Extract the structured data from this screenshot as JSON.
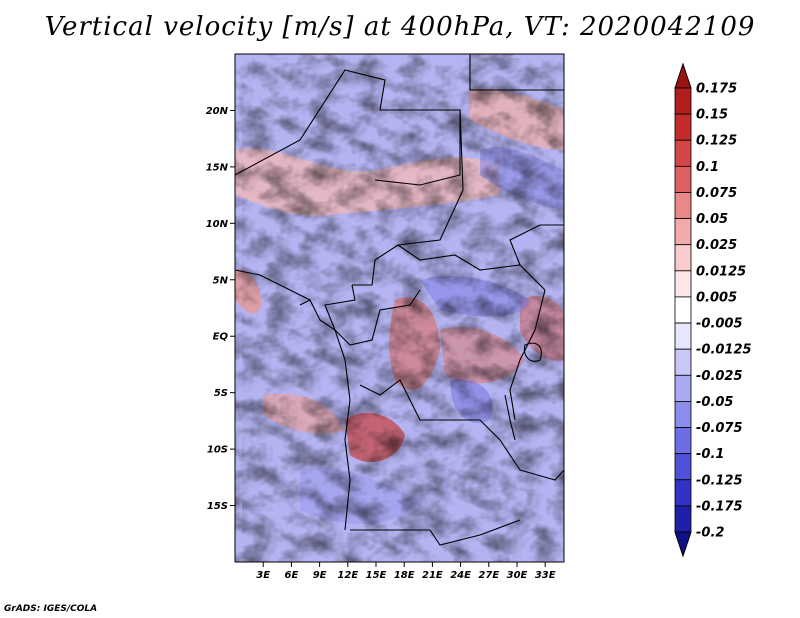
{
  "title": "Vertical velocity [m/s] at 400hPa, VT: 2020042109",
  "credit": "GrADS: IGES/COLA",
  "map": {
    "variable": "Vertical velocity",
    "units": "m/s",
    "level": "400hPa",
    "valid_time": "2020042109",
    "lon_range": [
      0,
      35
    ],
    "lat_range": [
      -20,
      25
    ],
    "x_tick_labels": [
      "3E",
      "6E",
      "9E",
      "12E",
      "15E",
      "18E",
      "21E",
      "24E",
      "27E",
      "30E",
      "33E"
    ],
    "x_tick_values": [
      3,
      6,
      9,
      12,
      15,
      18,
      21,
      24,
      27,
      30,
      33
    ],
    "y_tick_labels": [
      "20N",
      "15N",
      "10N",
      "5N",
      "EQ",
      "5S",
      "10S",
      "15S"
    ],
    "y_tick_values": [
      20,
      15,
      10,
      5,
      0,
      -5,
      -10,
      -15
    ]
  },
  "colorbar": {
    "labels": [
      "0.175",
      "0.15",
      "0.125",
      "0.1",
      "0.075",
      "0.05",
      "0.025",
      "0.0125",
      "0.005",
      "-0.005",
      "-0.0125",
      "-0.025",
      "-0.05",
      "-0.075",
      "-0.1",
      "-0.125",
      "-0.175",
      "-0.2"
    ],
    "colors": [
      "#9b1414",
      "#b01e1e",
      "#c42c2c",
      "#d24646",
      "#dc6262",
      "#e88888",
      "#f2aaaa",
      "#f8cccc",
      "#fce6e6",
      "#ffffff",
      "#e6e6fc",
      "#c8c8f8",
      "#aaaaf2",
      "#8c8ceb",
      "#6e6ee4",
      "#5050d8",
      "#3232c4",
      "#1e1ea8",
      "#10108a"
    ]
  },
  "colors": {
    "positive_high": "#a01818",
    "positive_mid": "#e88888",
    "neutral": "#ffffff",
    "negative_mid": "#9a9aee",
    "negative_high": "#2a2ab4",
    "border": "#000000"
  }
}
